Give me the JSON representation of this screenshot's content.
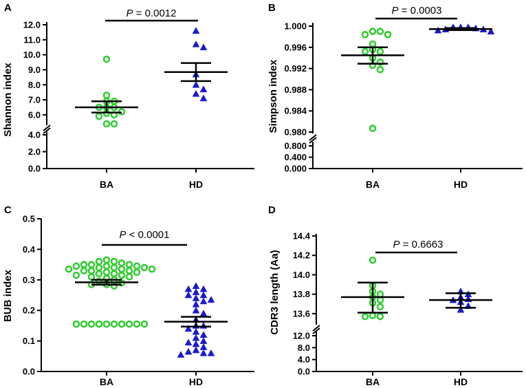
{
  "colors": {
    "BA": "#33cc33",
    "HD": "#1a1acc"
  },
  "chart_data": [
    {
      "type": "scatter",
      "panel": "A",
      "ylabel": "Shannon index",
      "categories": [
        "BA",
        "HD"
      ],
      "lower_ticks": [
        "0.0",
        "2.0",
        "4.0"
      ],
      "upper_ticks": [
        "6.0",
        "7.0",
        "8.0",
        "9.0",
        "10.0",
        "11.0",
        "12.0"
      ],
      "p_prefix": "P",
      "p_text": " = 0.0012",
      "series": [
        {
          "name": "BA",
          "marker": "circle",
          "values": [
            9.7,
            7.3,
            6.9,
            6.9,
            6.5,
            6.5,
            6.5,
            6.2,
            6.1,
            6.0,
            5.9,
            5.4,
            5.4
          ],
          "mean": 6.5,
          "sem_low": 6.15,
          "sem_high": 6.9
        },
        {
          "name": "HD",
          "marker": "triangle",
          "values": [
            11.6,
            10.7,
            10.5,
            8.7,
            8.0,
            7.7,
            7.4,
            7.1
          ],
          "mean": 8.85,
          "sem_low": 8.25,
          "sem_high": 9.45
        }
      ]
    },
    {
      "type": "scatter",
      "panel": "B",
      "ylabel": "Simpson index",
      "categories": [
        "BA",
        "HD"
      ],
      "lower_ticks": [
        "0.000",
        "0.400",
        "0.800"
      ],
      "upper_ticks": [
        "0.980",
        "0.984",
        "0.988",
        "0.992",
        "0.996",
        "1.000"
      ],
      "p_prefix": "P",
      "p_text": " = 0.0003",
      "series": [
        {
          "name": "BA",
          "marker": "circle",
          "values": [
            0.999,
            0.999,
            0.9984,
            0.9984,
            0.9966,
            0.9956,
            0.9952,
            0.9952,
            0.994,
            0.9932,
            0.9926,
            0.9918,
            0.9807
          ],
          "mean": 0.9945,
          "sem_low": 0.9929,
          "sem_high": 0.996
        },
        {
          "name": "HD",
          "marker": "triangle",
          "values": [
            0.9998,
            0.9998,
            0.9996,
            0.9994,
            0.9994,
            0.9992,
            0.999,
            0.9998
          ],
          "mean": 0.99945,
          "sem_low": 0.99925,
          "sem_high": 0.99965
        }
      ]
    },
    {
      "type": "scatter",
      "panel": "C",
      "ylabel": "BUB index",
      "categories": [
        "BA",
        "HD"
      ],
      "ylim": [
        0,
        0.5
      ],
      "ticks": [
        "0.0",
        "0.1",
        "0.2",
        "0.3",
        "0.4",
        "0.5"
      ],
      "p_prefix": "P",
      "p_text": " < 0.0001",
      "series": [
        {
          "name": "BA",
          "marker": "circle",
          "values": [
            0.365,
            0.36,
            0.36,
            0.355,
            0.35,
            0.35,
            0.35,
            0.345,
            0.345,
            0.345,
            0.34,
            0.34,
            0.34,
            0.335,
            0.335,
            0.335,
            0.33,
            0.33,
            0.33,
            0.325,
            0.325,
            0.32,
            0.32,
            0.315,
            0.315,
            0.31,
            0.31,
            0.305,
            0.3,
            0.295,
            0.29,
            0.285,
            0.285,
            0.28,
            0.155,
            0.155,
            0.155,
            0.155,
            0.155,
            0.155,
            0.155,
            0.155,
            0.155,
            0.155
          ],
          "mean": 0.292,
          "sem_low": 0.284,
          "sem_high": 0.3
        },
        {
          "name": "HD",
          "marker": "triangle",
          "values": [
            0.28,
            0.27,
            0.27,
            0.26,
            0.25,
            0.25,
            0.24,
            0.235,
            0.23,
            0.22,
            0.2,
            0.19,
            0.17,
            0.15,
            0.15,
            0.14,
            0.13,
            0.12,
            0.11,
            0.1,
            0.095,
            0.09,
            0.08,
            0.07,
            0.065,
            0.06,
            0.06,
            0.055
          ],
          "mean": 0.163,
          "sem_low": 0.147,
          "sem_high": 0.179
        }
      ]
    },
    {
      "type": "scatter",
      "panel": "D",
      "ylabel": "CDR3 length (Aa)",
      "categories": [
        "BA",
        "HD"
      ],
      "lower_ticks": [
        "0.0",
        "4.0",
        "8.0",
        "12.0"
      ],
      "upper_ticks": [
        "13.6",
        "13.8",
        "14.0",
        "14.2",
        "14.4"
      ],
      "p_prefix": "P",
      "p_text": " = 0.6663",
      "series": [
        {
          "name": "BA",
          "marker": "circle",
          "values": [
            14.15,
            13.89,
            13.83,
            13.8,
            13.77,
            13.74,
            13.71,
            13.67,
            13.58,
            13.57,
            13.57
          ],
          "mean": 13.77,
          "sem_low": 13.61,
          "sem_high": 13.92
        },
        {
          "name": "HD",
          "marker": "triangle",
          "values": [
            13.83,
            13.8,
            13.77,
            13.75,
            13.74,
            13.72,
            13.68,
            13.64
          ],
          "mean": 13.74,
          "sem_low": 13.66,
          "sem_high": 13.81
        }
      ]
    }
  ]
}
